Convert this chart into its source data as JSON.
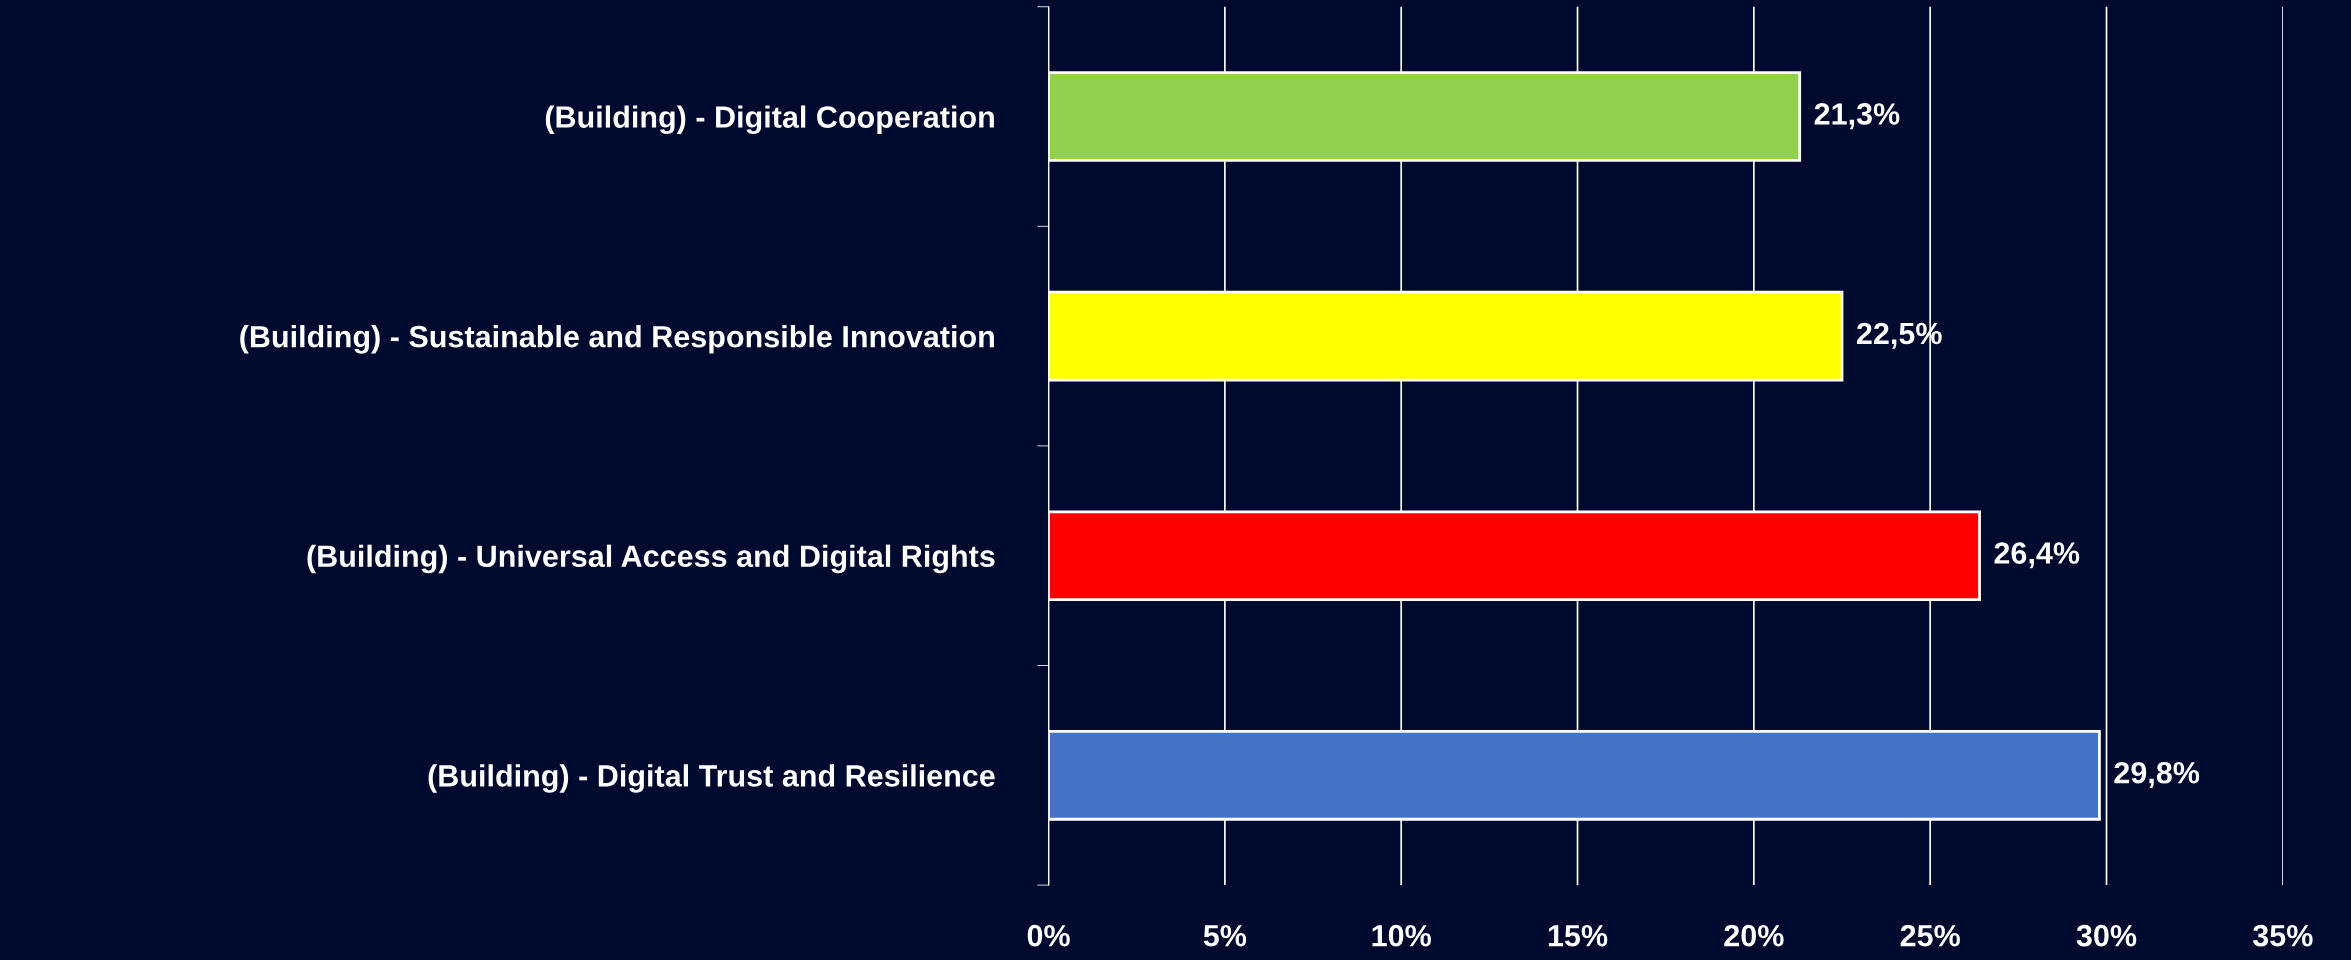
{
  "chart_data": {
    "type": "bar",
    "orientation": "horizontal",
    "categories": [
      "(Building) - Digital Cooperation",
      "(Building) - Sustainable and Responsible Innovation",
      "(Building) - Universal Access and Digital Rights",
      "(Building) - Digital Trust and Resilience"
    ],
    "values": [
      21.3,
      22.5,
      26.4,
      29.8
    ],
    "colors": [
      "#92d050",
      "#ffff00",
      "#ff0000",
      "#4472c4"
    ],
    "value_labels": [
      "21,3%",
      "22,5%",
      "26,4%",
      "29,8%"
    ],
    "xlim": [
      0,
      35
    ],
    "xticks": [
      {
        "value": 0,
        "label": "0%"
      },
      {
        "value": 5,
        "label": "5%"
      },
      {
        "value": 10,
        "label": "10%"
      },
      {
        "value": 15,
        "label": "15%"
      },
      {
        "value": 20,
        "label": "20%"
      },
      {
        "value": 25,
        "label": "25%"
      },
      {
        "value": 30,
        "label": "30%"
      },
      {
        "value": 35,
        "label": "35%"
      }
    ],
    "grid": "x",
    "legend": false
  }
}
